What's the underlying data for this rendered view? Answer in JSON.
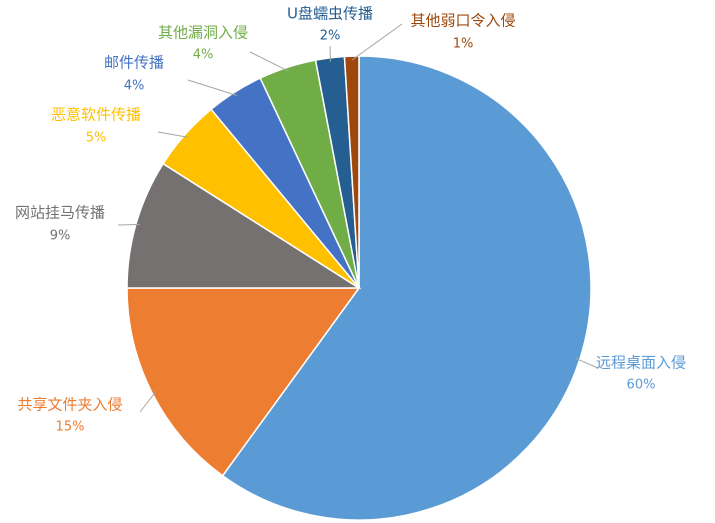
{
  "chart_data": {
    "type": "pie",
    "categories": [
      "远程桌面入侵",
      "共享文件夹入侵",
      "网站挂马传播",
      "恶意软件传播",
      "邮件传播",
      "其他漏洞入侵",
      "U盘蠕虫传播",
      "其他弱口令入侵"
    ],
    "values": [
      60,
      15,
      9,
      5,
      4,
      4,
      2,
      1
    ],
    "value_labels": [
      "60%",
      "15%",
      "9%",
      "5%",
      "4%",
      "4%",
      "2%",
      "1%"
    ],
    "colors": [
      "#5b9bd5",
      "#ed7d31",
      "#767171",
      "#ffc000",
      "#4472c4",
      "#70ad47",
      "#255e91",
      "#9e480e"
    ]
  }
}
